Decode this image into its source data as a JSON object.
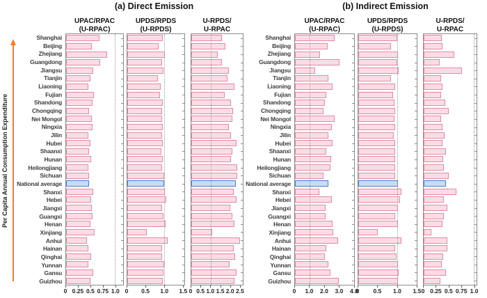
{
  "figure": {
    "y_axis_label": "Per Capita Annual Consumption Expenditure"
  },
  "colors": {
    "bar_fill": "#fbdce6",
    "bar_border": "#e08ba2",
    "highlight_fill": "#c9dcf7",
    "highlight_border": "#4d79cc",
    "arrow_orange": "#ed7d31",
    "axis_gray": "#8a8a8a",
    "reference_line_gray": "#9a9a9a",
    "label_text": "#3d3d3d"
  },
  "chart_data": {
    "type": "bar",
    "orientation": "horizontal",
    "y_axis_label": "Per Capita Annual Consumption Expenditure",
    "grid": false,
    "categories": [
      "Shanghai",
      "Beijing",
      "Zhejiang",
      "Guangdong",
      "Jiangsu",
      "Tianjin",
      "Liaoning",
      "Fujian",
      "Shandong",
      "Chongqing",
      "Nei Mongol",
      "Ningxia",
      "Jilin",
      "Hubei",
      "Shaanxi",
      "Hunan",
      "Heilongjiang",
      "Sichuan",
      "National average",
      "Shanxi",
      "Hebei",
      "Jiangxi",
      "Guangxi",
      "Henan",
      "Xinjiang",
      "Anhui",
      "Hainan",
      "Qinghai",
      "Yunnan",
      "Gansu",
      "Guizhou"
    ],
    "highlight_category": "National average",
    "sections": [
      {
        "id": "a",
        "title": "(a) Direct Emission",
        "panels": [
          {
            "header_line1": "UPAC/RPAC",
            "header_line2": "(U-RPAC)",
            "tick_labels": [
              "0",
              "0.25",
              "0.5",
              "0.75",
              "1.0"
            ],
            "tick_values": [
              0,
              0.25,
              0.5,
              0.75,
              1.0
            ],
            "axis_max": 1.17,
            "reference_line": 1.0,
            "values": [
              0.69,
              0.53,
              0.84,
              0.7,
              0.56,
              0.5,
              0.46,
              0.57,
              0.54,
              0.47,
              0.53,
              0.54,
              0.45,
              0.5,
              0.47,
              0.52,
              0.45,
              0.47,
              0.47,
              0.56,
              0.51,
              0.53,
              0.54,
              0.5,
              0.58,
              0.43,
              0.45,
              0.51,
              0.46,
              0.55,
              0.5
            ]
          },
          {
            "header_line1": "UPDS/RPDS",
            "header_line2": "(U-RPDS)",
            "tick_labels": [
              "0",
              "0.5",
              "1.0",
              "1.5"
            ],
            "tick_values": [
              0,
              0.5,
              1.0,
              1.5
            ],
            "axis_max": 1.55,
            "reference_line": 1.0,
            "values": [
              0.97,
              0.85,
              1.02,
              0.94,
              0.98,
              0.83,
              0.91,
              0.89,
              0.97,
              0.95,
              0.94,
              0.97,
              0.94,
              0.97,
              0.92,
              0.96,
              0.95,
              1.0,
              1.0,
              1.03,
              1.06,
              0.94,
              0.98,
              1.04,
              0.52,
              1.09,
              0.95,
              0.94,
              1.0,
              0.99,
              0.97
            ]
          },
          {
            "header_line1": "U-RPDS/",
            "header_line2": "U-RPAC",
            "tick_labels": [
              "0",
              "0.5",
              "1.0",
              "1.5",
              "2.0",
              "2.5"
            ],
            "tick_values": [
              0,
              0.5,
              1.0,
              1.5,
              2.0,
              2.5
            ],
            "axis_max": 2.68,
            "reference_line": 1.0,
            "values": [
              1.58,
              1.77,
              1.38,
              1.59,
              1.97,
              1.87,
              2.23,
              1.74,
              2.06,
              2.18,
              2.14,
              1.97,
              2.05,
              2.36,
              2.14,
              2.06,
              2.4,
              2.4,
              2.3,
              2.2,
              2.37,
              2.03,
              2.12,
              2.26,
              1.08,
              2.55,
              2.2,
              2.29,
              2.0,
              2.36,
              2.26
            ]
          }
        ]
      },
      {
        "id": "b",
        "title": "(b) Indirect Emission",
        "panels": [
          {
            "header_line1": "UPAC/RPAC",
            "header_line2": "(U-RPAC)",
            "tick_labels": [
              "0",
              "1.0",
              "2.0",
              "3.0",
              "4.0"
            ],
            "tick_values": [
              0,
              1.0,
              2.0,
              3.0,
              4.0
            ],
            "axis_max": 4.05,
            "reference_line": 1.0,
            "values": [
              2.7,
              2.24,
              1.7,
              3.06,
              1.39,
              2.31,
              2.58,
              2.16,
              2.04,
              1.93,
              2.73,
              2.51,
              2.31,
              2.55,
              2.13,
              2.5,
              2.42,
              1.93,
              2.31,
              1.65,
              2.51,
              2.12,
              2.08,
              2.55,
              2.62,
              2.96,
              2.16,
              2.05,
              2.28,
              2.42,
              3.0
            ]
          },
          {
            "header_line1": "UPDS/RPDS",
            "header_line2": "(U-RPDS)",
            "tick_labels": [
              "0",
              "0.5",
              "1.0",
              "1.5"
            ],
            "tick_values": [
              0,
              0.5,
              1.0,
              1.5
            ],
            "axis_max": 1.51,
            "reference_line": 1.0,
            "values": [
              1.0,
              0.84,
              1.03,
              1.01,
              1.04,
              0.84,
              0.95,
              0.9,
              0.94,
              0.95,
              0.94,
              0.96,
              0.92,
              0.95,
              0.96,
              0.95,
              0.95,
              0.96,
              1.03,
              1.11,
              1.08,
              1.03,
              0.95,
              1.03,
              0.5,
              1.11,
              0.95,
              0.98,
              1.03,
              1.04,
              1.03
            ]
          },
          {
            "header_line1": "U-RPDS/",
            "header_line2": "U-RPAC",
            "tick_labels": [
              "0",
              "0.25",
              "0.5",
              "0.75",
              "1.0"
            ],
            "tick_values": [
              0,
              0.25,
              0.5,
              0.75,
              1.0
            ],
            "axis_max": 1.06,
            "reference_line": 1.0,
            "values": [
              0.36,
              0.38,
              0.62,
              0.32,
              0.77,
              0.35,
              0.38,
              0.35,
              0.43,
              0.5,
              0.35,
              0.38,
              0.42,
              0.37,
              0.45,
              0.39,
              0.4,
              0.5,
              0.44,
              0.66,
              0.41,
              0.48,
              0.41,
              0.38,
              0.15,
              0.48,
              0.48,
              0.39,
              0.36,
              0.45,
              0.33
            ]
          }
        ]
      }
    ]
  }
}
